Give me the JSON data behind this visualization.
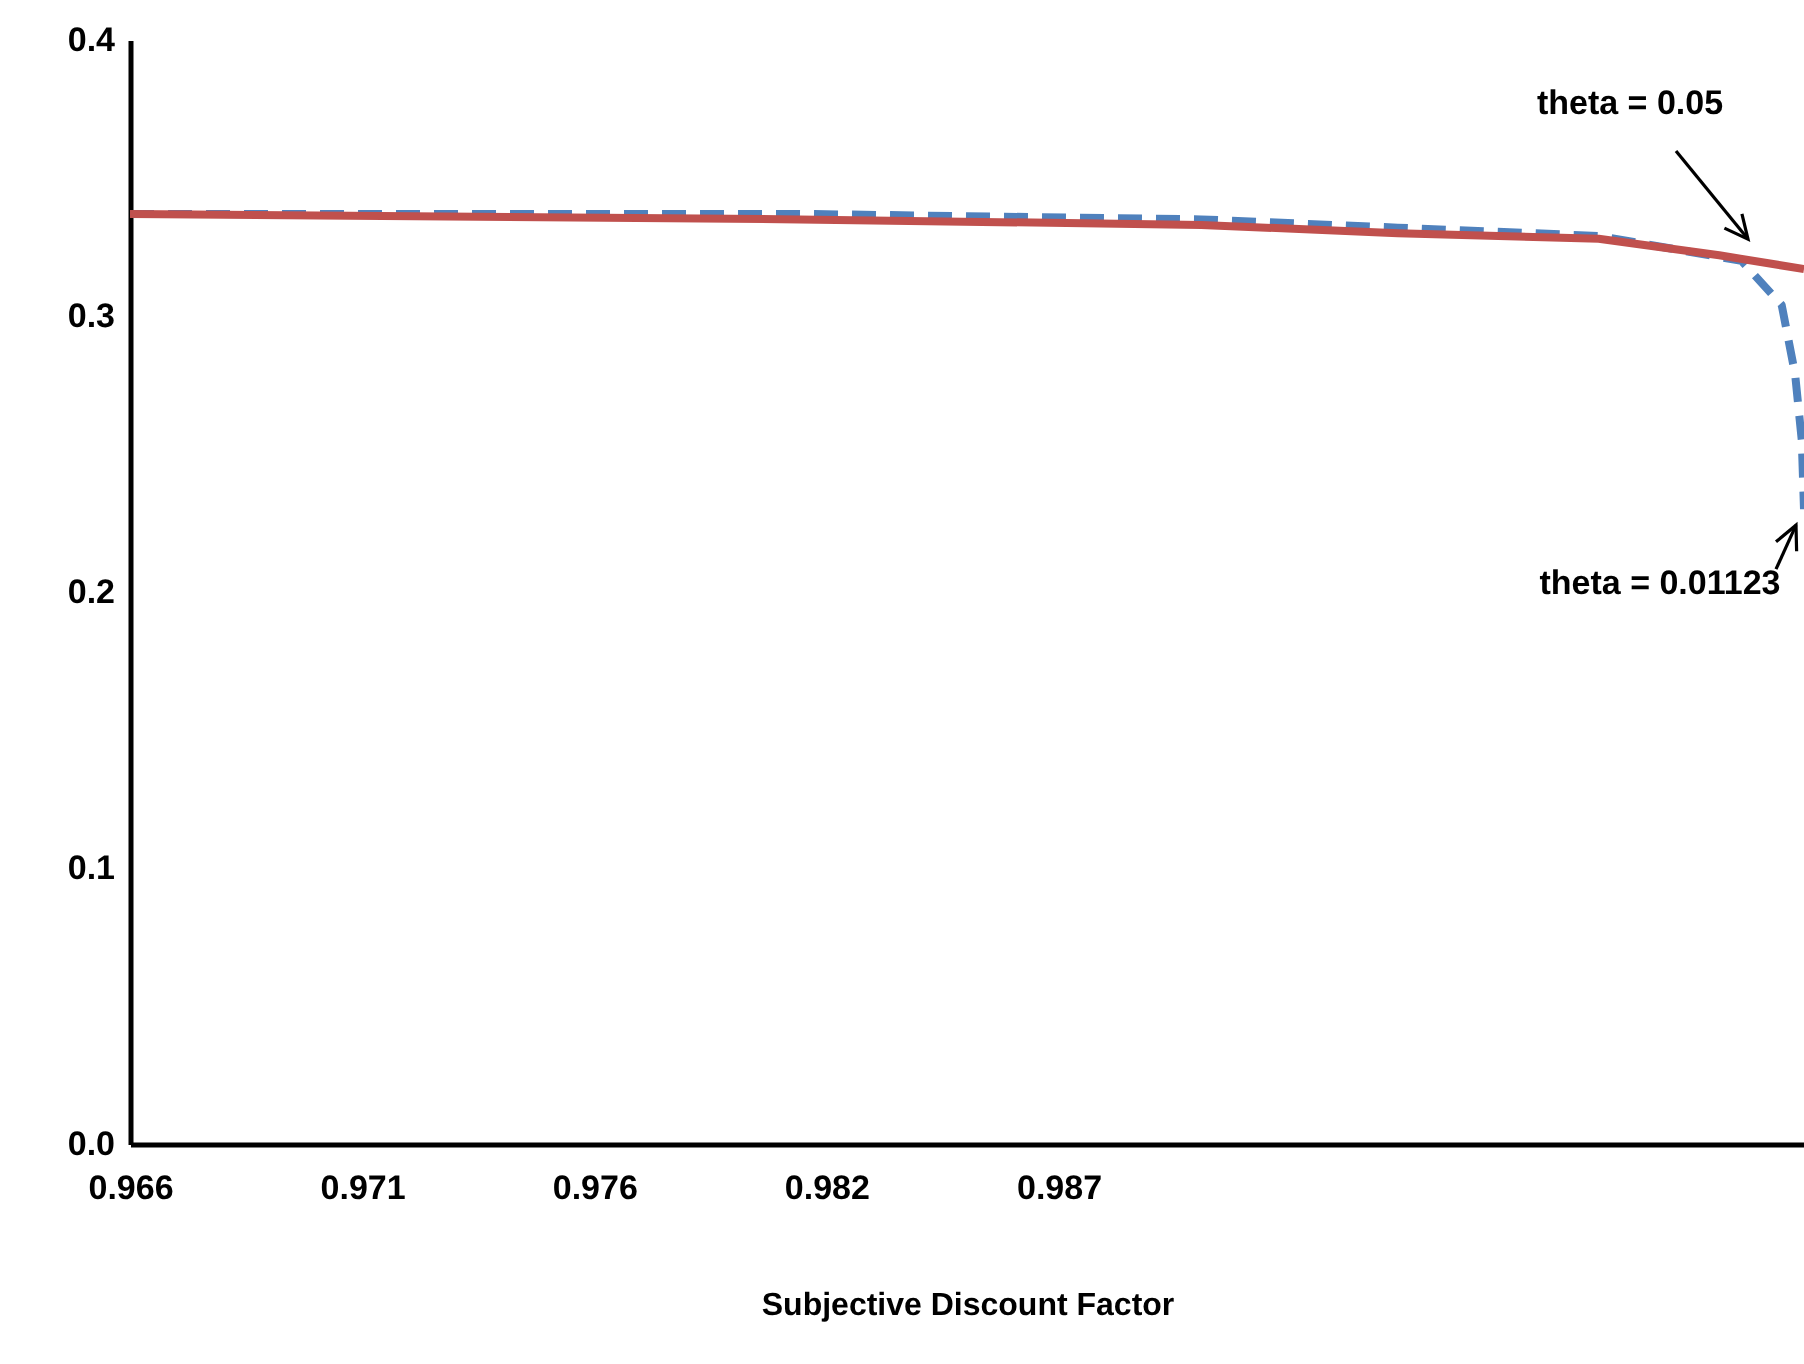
{
  "chart_data": {
    "type": "line",
    "xlabel": "Subjective Discount Factor",
    "xlim": [
      0.966,
      1.0035
    ],
    "xticks": [
      {
        "value": 0.966,
        "label": "0.966"
      },
      {
        "value": 0.9712,
        "label": "0.971"
      },
      {
        "value": 0.9764,
        "label": "0.976"
      },
      {
        "value": 0.9816,
        "label": "0.982"
      },
      {
        "value": 0.9868,
        "label": "0.987"
      }
    ],
    "ylim": [
      0,
      0.4
    ],
    "yticks": [
      {
        "value": 0,
        "label": "0.0"
      },
      {
        "value": 0.1,
        "label": "0.1"
      },
      {
        "value": 0.2,
        "label": "0.2"
      },
      {
        "value": 0.3,
        "label": "0.3"
      },
      {
        "value": 0.4,
        "label": "0.4"
      }
    ],
    "legend": false,
    "series": [
      {
        "name": "theta = 0.01123",
        "color": "#4f81bd",
        "line_style": "dashed",
        "x": [
          0.966,
          0.981,
          0.99,
          0.9944,
          0.9989,
          1.0021,
          1.003,
          1.0033,
          1.00345,
          1.0035
        ],
        "values": [
          0.337,
          0.337,
          0.335,
          0.332,
          0.329,
          0.32,
          0.304,
          0.279,
          0.255,
          0.23
        ]
      },
      {
        "name": "theta = 0.05",
        "color": "#c0504d",
        "line_style": "solid",
        "x": [
          0.966,
          0.981,
          0.99,
          0.9944,
          0.9989,
          1.0016,
          1.0035
        ],
        "values": [
          0.337,
          0.335,
          0.333,
          0.33,
          0.328,
          0.322,
          0.317
        ]
      }
    ]
  }
}
